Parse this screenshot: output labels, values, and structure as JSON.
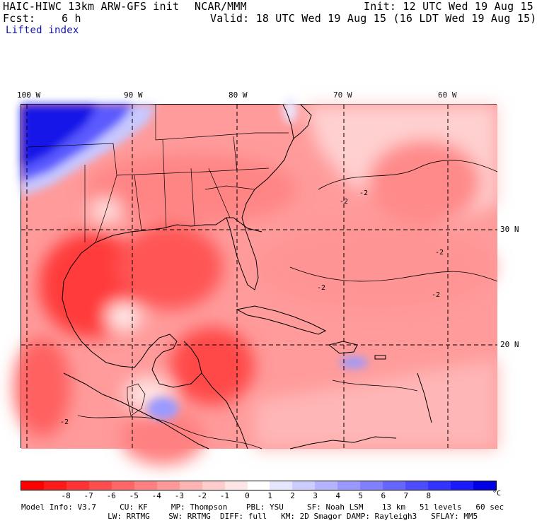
{
  "header": {
    "model_title": "HAIC-HIWC 13km ARW-GFS init",
    "org": "NCAR/MMM",
    "init": "Init: 12 UTC Wed 19 Aug 15",
    "fcst": "Fcst:    6 h",
    "valid": "Valid: 18 UTC Wed 19 Aug 15 (16 LDT Wed 19 Aug 15)",
    "field": "Lifted index"
  },
  "map": {
    "lon_labels": [
      "100 W",
      "90 W",
      "80 W",
      "70 W",
      "60 W"
    ],
    "lat_labels": [
      "30 N",
      "20 N"
    ],
    "contour_labels": [
      "-2",
      "-2",
      "-2",
      "-2",
      "-2",
      "-2"
    ]
  },
  "colorbar": {
    "unit": "°C",
    "ticks": [
      "-8",
      "-7",
      "-6",
      "-5",
      "-4",
      "-3",
      "-2",
      "-1",
      "0",
      "1",
      "2",
      "3",
      "4",
      "5",
      "6",
      "7",
      "8"
    ],
    "colors": [
      "#ff0000",
      "#ff1a1a",
      "#ff3333",
      "#ff4d4d",
      "#ff6666",
      "#ff8080",
      "#ff9999",
      "#ffb3b3",
      "#ffcccc",
      "#ffe6e6",
      "#ffffff",
      "#e6e6ff",
      "#ccccff",
      "#b3b3ff",
      "#9999ff",
      "#8080ff",
      "#6666ff",
      "#4d4dff",
      "#3333ff",
      "#1a1aff",
      "#0000e6"
    ]
  },
  "footer": {
    "line1": "Model Info: V3.7     CU: KF     MP: Thompson    PBL: YSU     SF: Noah LSM    13 km   51 levels   60 sec",
    "line2": "     LW: RRTMG    SW: RRTMG  DIFF: full   KM: 2D Smagor DAMP: Rayleigh3   SFLAY: MM5"
  }
}
